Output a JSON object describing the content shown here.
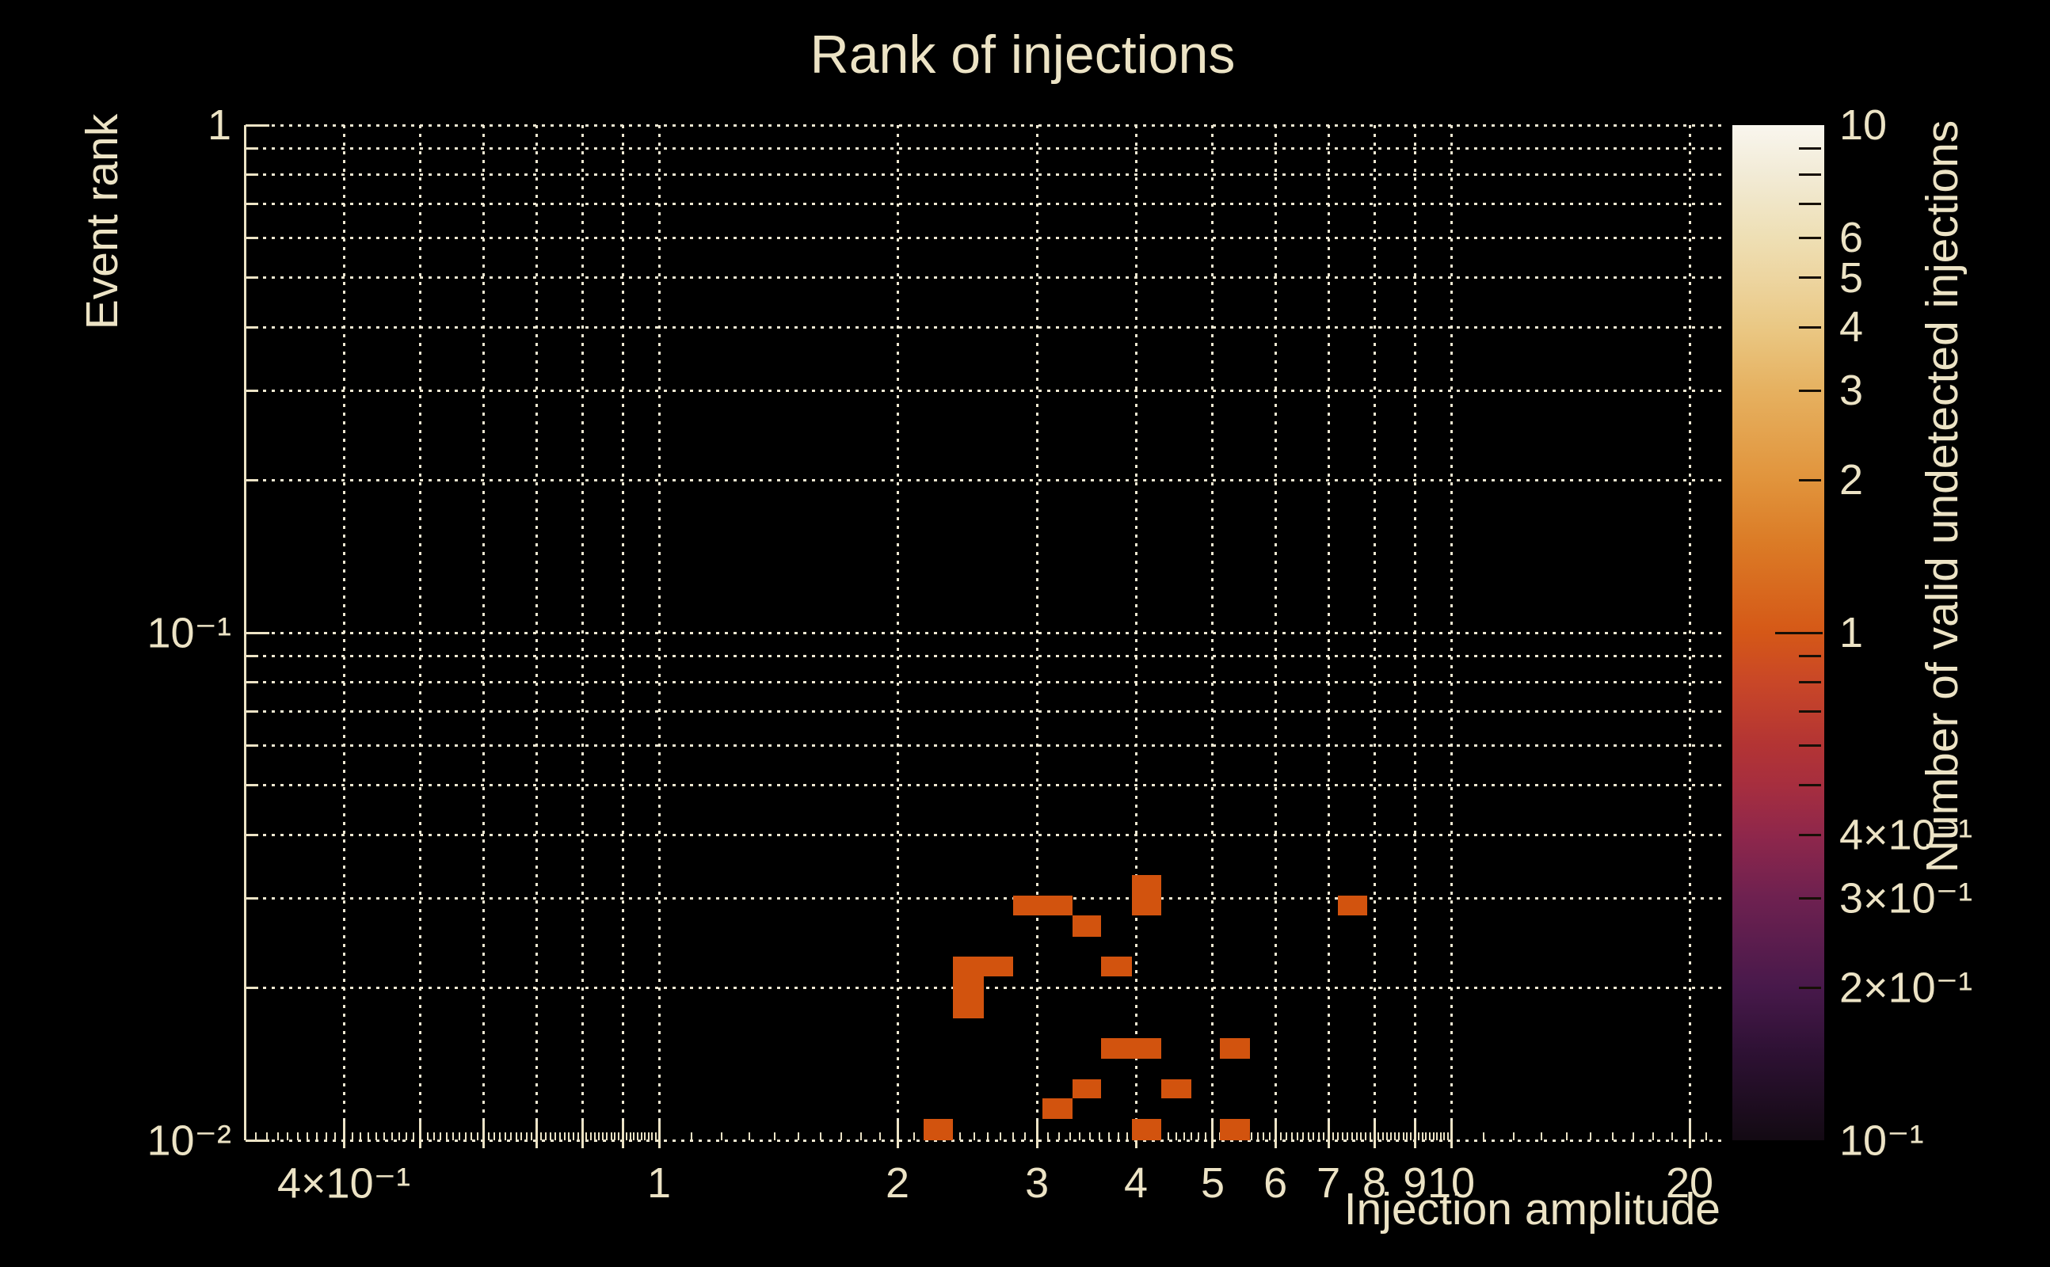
{
  "title": "Rank of injections",
  "x_axis": {
    "label": "Injection amplitude",
    "scale": "log",
    "range": [
      0.3,
      21.9
    ],
    "tick_labels": [
      {
        "value": 0.4,
        "text": "4×10⁻¹"
      },
      {
        "value": 1,
        "text": "1"
      },
      {
        "value": 2,
        "text": "2"
      },
      {
        "value": 3,
        "text": "3"
      },
      {
        "value": 4,
        "text": "4"
      },
      {
        "value": 5,
        "text": "5"
      },
      {
        "value": 6,
        "text": "6"
      },
      {
        "value": 7,
        "text": "7"
      },
      {
        "value": 8,
        "text": "8"
      },
      {
        "value": 9,
        "text": "9"
      },
      {
        "value": 10,
        "text": "10"
      },
      {
        "value": 20,
        "text": "20"
      }
    ],
    "gridlines": [
      0.4,
      0.5,
      0.6,
      0.7,
      0.8,
      0.9,
      1,
      2,
      3,
      4,
      5,
      6,
      7,
      8,
      9,
      10,
      20
    ]
  },
  "y_axis": {
    "label": "Event rank",
    "scale": "log",
    "range": [
      0.01,
      1
    ],
    "tick_labels": [
      {
        "value": 1,
        "text": "1"
      },
      {
        "value": 0.1,
        "text": "10⁻¹"
      },
      {
        "value": 0.01,
        "text": "10⁻²"
      }
    ],
    "gridlines": [
      1,
      0.9,
      0.8,
      0.7,
      0.6,
      0.5,
      0.4,
      0.3,
      0.2,
      0.1,
      0.09,
      0.08,
      0.07,
      0.06,
      0.05,
      0.04,
      0.03,
      0.02,
      0.01
    ]
  },
  "colorbar": {
    "label": "Number of valid undetected injections",
    "scale": "log",
    "range": [
      0.1,
      10
    ],
    "tick_labels": [
      {
        "value": 10,
        "text": "10"
      },
      {
        "value": 6,
        "text": "6"
      },
      {
        "value": 5,
        "text": "5"
      },
      {
        "value": 4,
        "text": "4"
      },
      {
        "value": 3,
        "text": "3"
      },
      {
        "value": 2,
        "text": "2"
      },
      {
        "value": 1,
        "text": "1"
      },
      {
        "value": 0.4,
        "text": "4×10⁻¹"
      },
      {
        "value": 0.3,
        "text": "3×10⁻¹"
      },
      {
        "value": 0.2,
        "text": "2×10⁻¹"
      },
      {
        "value": 0.1,
        "text": "10⁻¹"
      }
    ],
    "gradient_stops": [
      {
        "value": 10,
        "color": "#f9f6ee"
      },
      {
        "value": 8,
        "color": "#f2ebd6"
      },
      {
        "value": 6,
        "color": "#eedfb4"
      },
      {
        "value": 5,
        "color": "#edd5a0"
      },
      {
        "value": 4,
        "color": "#eac884"
      },
      {
        "value": 3,
        "color": "#e6b160"
      },
      {
        "value": 2,
        "color": "#e1943c"
      },
      {
        "value": 1.5,
        "color": "#db7b26"
      },
      {
        "value": 1,
        "color": "#d55817"
      },
      {
        "value": 0.8,
        "color": "#c94727"
      },
      {
        "value": 0.6,
        "color": "#b33434"
      },
      {
        "value": 0.5,
        "color": "#a62e3f"
      },
      {
        "value": 0.4,
        "color": "#8f274b"
      },
      {
        "value": 0.3,
        "color": "#6e2150"
      },
      {
        "value": 0.2,
        "color": "#48194b"
      },
      {
        "value": 0.15,
        "color": "#2e1134"
      },
      {
        "value": 0.1,
        "color": "#130a13"
      }
    ]
  },
  "chart_data": {
    "type": "heatmap",
    "title": "Rank of injections",
    "xlabel": "Injection amplitude",
    "ylabel": "Event rank",
    "zlabel": "Number of valid undetected injections",
    "xscale": "log",
    "yscale": "log",
    "zscale": "log",
    "xlim": [
      0.3,
      21.9
    ],
    "ylim": [
      0.01,
      1
    ],
    "zlim": [
      0.1,
      10
    ],
    "grid": true,
    "legend_position": "right-colorbar",
    "cells": [
      {
        "x1": 2.16,
        "x2": 2.35,
        "y1": 0.01,
        "y2": 0.011,
        "value": 1
      },
      {
        "x1": 3.95,
        "x2": 4.31,
        "y1": 0.01,
        "y2": 0.011,
        "value": 1
      },
      {
        "x1": 5.11,
        "x2": 5.57,
        "y1": 0.01,
        "y2": 0.011,
        "value": 1
      },
      {
        "x1": 3.05,
        "x2": 3.33,
        "y1": 0.011,
        "y2": 0.0121,
        "value": 1
      },
      {
        "x1": 3.33,
        "x2": 3.61,
        "y1": 0.0121,
        "y2": 0.0132,
        "value": 1
      },
      {
        "x1": 4.31,
        "x2": 4.7,
        "y1": 0.0121,
        "y2": 0.0132,
        "value": 1
      },
      {
        "x1": 3.61,
        "x2": 4.31,
        "y1": 0.0145,
        "y2": 0.0159,
        "value": 1
      },
      {
        "x1": 5.11,
        "x2": 5.57,
        "y1": 0.0145,
        "y2": 0.0159,
        "value": 1
      },
      {
        "x1": 2.35,
        "x2": 2.57,
        "y1": 0.0174,
        "y2": 0.021,
        "value": 1
      },
      {
        "x1": 2.35,
        "x2": 2.8,
        "y1": 0.021,
        "y2": 0.023,
        "value": 1
      },
      {
        "x1": 3.61,
        "x2": 3.95,
        "y1": 0.021,
        "y2": 0.023,
        "value": 1
      },
      {
        "x1": 3.33,
        "x2": 3.61,
        "y1": 0.0252,
        "y2": 0.0277,
        "value": 1
      },
      {
        "x1": 2.8,
        "x2": 3.33,
        "y1": 0.0277,
        "y2": 0.0303,
        "value": 1
      },
      {
        "x1": 3.95,
        "x2": 4.31,
        "y1": 0.0277,
        "y2": 0.0333,
        "value": 1
      },
      {
        "x1": 7.19,
        "x2": 7.84,
        "y1": 0.0277,
        "y2": 0.0303,
        "value": 1
      }
    ]
  },
  "colors": {
    "background": "#000000",
    "text": "#ece3c5",
    "grid": "#efe8d2",
    "cell": "#d2530e"
  }
}
